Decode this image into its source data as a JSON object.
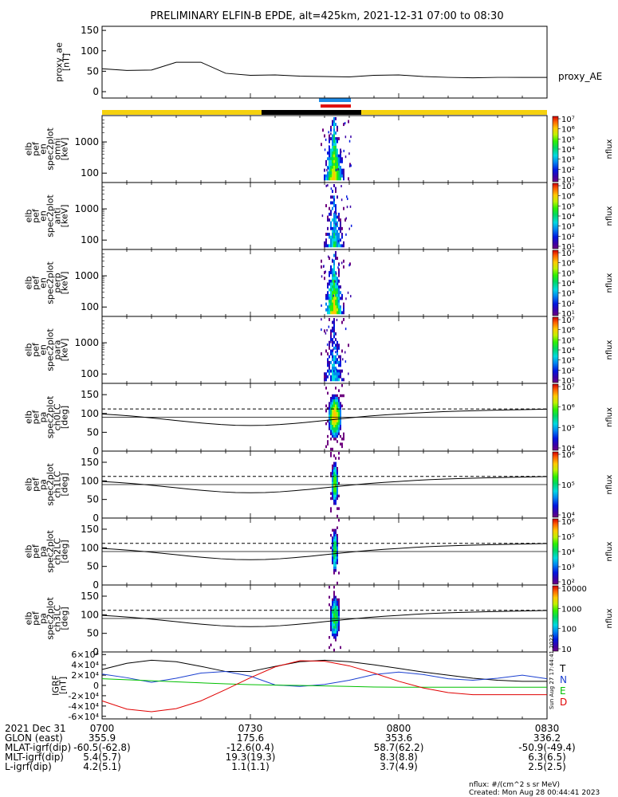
{
  "title": "PRELIMINARY ELFIN-B EPDE, alt=425km, 2021-12-31 07:00 to 08:30",
  "colors": {
    "line": "#000000",
    "gse_blue": "#1e8be8",
    "gse_red": "#e01010",
    "bar_yellow": "#f5d10e",
    "bar_black": "#000000",
    "B_T": "#000000",
    "B_N": "#1a3fd0",
    "B_E": "#00c000",
    "B_D": "#e00000"
  },
  "timebar": {
    "top_indicators": [
      "blue",
      "red"
    ],
    "segments": [
      "yellow",
      "black",
      "yellow"
    ]
  },
  "chart_data": [
    {
      "id": "proxy_ae",
      "type": "line",
      "ylabel_lines": [
        "proxy_ae",
        "[nT]"
      ],
      "legend": "proxy_AE",
      "ylim": [
        0,
        160
      ],
      "yticks": [
        "0",
        "50",
        "100",
        "150"
      ],
      "x": [
        "07:00",
        "07:05",
        "07:10",
        "07:15",
        "07:20",
        "07:25",
        "07:30",
        "07:35",
        "07:40",
        "07:45",
        "07:50",
        "07:55",
        "08:00",
        "08:05",
        "08:10",
        "08:15",
        "08:20",
        "08:25",
        "08:30"
      ],
      "values": [
        56,
        52,
        53,
        72,
        72,
        45,
        40,
        41,
        38,
        37,
        36,
        40,
        41,
        37,
        35,
        34,
        35,
        35,
        35
      ]
    },
    {
      "id": "en_omni",
      "type": "heatmap",
      "ylabel_lines": [
        "elb",
        "pef",
        "en",
        "spec2plot",
        "omni",
        "[keV]"
      ],
      "yscale": "log",
      "yticks": [
        "100",
        "1000"
      ],
      "colorbar_label": "nflux",
      "colorbar_ticks": [
        "10¹",
        "10²",
        "10³",
        "10⁴",
        "10⁵",
        "10⁶",
        "10⁷"
      ]
    },
    {
      "id": "en_anti",
      "type": "heatmap",
      "ylabel_lines": [
        "elb",
        "pef",
        "en",
        "spec2plot",
        "anti",
        "[keV]"
      ],
      "yscale": "log",
      "yticks": [
        "100",
        "1000"
      ],
      "colorbar_label": "nflux",
      "colorbar_ticks": [
        "10¹",
        "10²",
        "10³",
        "10⁴",
        "10⁵",
        "10⁶",
        "10⁷"
      ]
    },
    {
      "id": "en_perp",
      "type": "heatmap",
      "ylabel_lines": [
        "elb",
        "pef",
        "en",
        "spec2plot",
        "perp",
        "[keV]"
      ],
      "yscale": "log",
      "yticks": [
        "100",
        "1000"
      ],
      "colorbar_label": "nflux",
      "colorbar_ticks": [
        "10¹",
        "10²",
        "10³",
        "10⁴",
        "10⁵",
        "10⁶",
        "10⁷"
      ]
    },
    {
      "id": "en_para",
      "type": "heatmap",
      "ylabel_lines": [
        "elb",
        "pef",
        "en",
        "spec2plot",
        "para",
        "[keV]"
      ],
      "yscale": "log",
      "yticks": [
        "100",
        "1000"
      ],
      "colorbar_label": "nflux",
      "colorbar_ticks": [
        "10¹",
        "10²",
        "10³",
        "10⁴",
        "10⁵",
        "10⁶",
        "10⁷"
      ]
    },
    {
      "id": "pa_ch0",
      "type": "heatmap",
      "ylabel_lines": [
        "elb",
        "pef",
        "pa",
        "spec2plot",
        "ch0LC",
        "[deg]"
      ],
      "ylim": [
        0,
        180
      ],
      "yticks": [
        "0",
        "50",
        "100",
        "150"
      ],
      "colorbar_label": "nflux",
      "colorbar_ticks": [
        "10⁴",
        "10⁵",
        "10⁶",
        "10⁷"
      ]
    },
    {
      "id": "pa_ch1",
      "type": "heatmap",
      "ylabel_lines": [
        "elb",
        "pef",
        "pa",
        "spec2plot",
        "ch1LC",
        "[deg]"
      ],
      "ylim": [
        0,
        180
      ],
      "yticks": [
        "0",
        "50",
        "100",
        "150"
      ],
      "colorbar_label": "nflux",
      "colorbar_ticks": [
        "10⁴",
        "10⁵",
        "10⁶"
      ]
    },
    {
      "id": "pa_ch2",
      "type": "heatmap",
      "ylabel_lines": [
        "elb",
        "pef",
        "pa",
        "spec2plot",
        "ch2LC",
        "[deg]"
      ],
      "ylim": [
        0,
        180
      ],
      "yticks": [
        "0",
        "50",
        "100",
        "150"
      ],
      "colorbar_label": "nflux",
      "colorbar_ticks": [
        "10²",
        "10³",
        "10⁴",
        "10⁵",
        "10⁶"
      ]
    },
    {
      "id": "pa_ch3",
      "type": "heatmap",
      "ylabel_lines": [
        "elb",
        "pef",
        "pa",
        "spec2plot",
        "ch3LC",
        "[deg]"
      ],
      "ylim": [
        0,
        180
      ],
      "yticks": [
        "0",
        "50",
        "100",
        "150"
      ],
      "colorbar_label": "nflux",
      "colorbar_ticks": [
        "10",
        "100",
        "1000",
        "10000"
      ]
    },
    {
      "id": "igrf",
      "type": "line",
      "ylabel_lines": [
        "IGRF",
        "[nT]"
      ],
      "ylim": [
        -65000,
        65000
      ],
      "yticks": [
        "-6×10⁴",
        "-4×10⁴",
        "-2×10⁴",
        "0",
        "2×10⁴",
        "4×10⁴",
        "6×10⁴"
      ],
      "x": [
        "07:00",
        "07:05",
        "07:10",
        "07:15",
        "07:20",
        "07:25",
        "07:30",
        "07:35",
        "07:40",
        "07:45",
        "07:50",
        "07:55",
        "08:00",
        "08:05",
        "08:10",
        "08:15",
        "08:20",
        "08:25",
        "08:30"
      ],
      "series": [
        {
          "name": "T",
          "color": "#000000",
          "values": [
            31000,
            43000,
            49000,
            46000,
            37000,
            27000,
            27000,
            37000,
            46000,
            49000,
            46000,
            40000,
            33000,
            26000,
            20000,
            14000,
            10000,
            8000,
            8000
          ]
        },
        {
          "name": "N",
          "color": "#1a3fd0",
          "values": [
            22000,
            15000,
            6000,
            14000,
            24000,
            27000,
            18000,
            1000,
            -2000,
            2000,
            10000,
            21000,
            26000,
            21000,
            13000,
            10000,
            14000,
            20000,
            13000
          ]
        },
        {
          "name": "E",
          "color": "#00c000",
          "values": [
            13000,
            11000,
            9000,
            7000,
            5000,
            3000,
            1500,
            500,
            0,
            -1000,
            -2000,
            -3000,
            -3500,
            -3500,
            -3500,
            -3500,
            -3500,
            -3500,
            -3500
          ]
        },
        {
          "name": "D",
          "color": "#e00000",
          "values": [
            -30000,
            -46000,
            -51000,
            -45000,
            -30000,
            -8000,
            15000,
            36000,
            48000,
            47000,
            38000,
            24000,
            8000,
            -5000,
            -14000,
            -18000,
            -18000,
            -18000,
            -18000
          ]
        }
      ]
    }
  ],
  "bottom_axis": {
    "rows": [
      {
        "label": "2021 Dec 31",
        "values": [
          "0700",
          "0730",
          "0800",
          "0830"
        ]
      },
      {
        "label": "GLON (east)",
        "values": [
          "355.9",
          "175.6",
          "353.6",
          "336.2"
        ]
      },
      {
        "label": "MLAT-igrf(dip)",
        "values": [
          "-60.5(-62.8)",
          "-12.6(0.4)",
          "58.7(62.2)",
          "-50.9(-49.4)"
        ]
      },
      {
        "label": "MLT-igrf(dip)",
        "values": [
          "5.4(5.7)",
          "19.3(19.3)",
          "8.3(8.8)",
          "6.3(6.5)"
        ]
      },
      {
        "label": "L-igrf(dip)",
        "values": [
          "4.2(5.1)",
          "1.1(1.1)",
          "3.7(4.9)",
          "2.5(2.5)"
        ]
      }
    ]
  },
  "footer": {
    "units": "nflux: #/(cm^2 s sr MeV)",
    "created": "Created: Mon Aug 28 00:44:41 2023",
    "side_stamp": "Sun Aug 27 17:44:41 2023"
  }
}
